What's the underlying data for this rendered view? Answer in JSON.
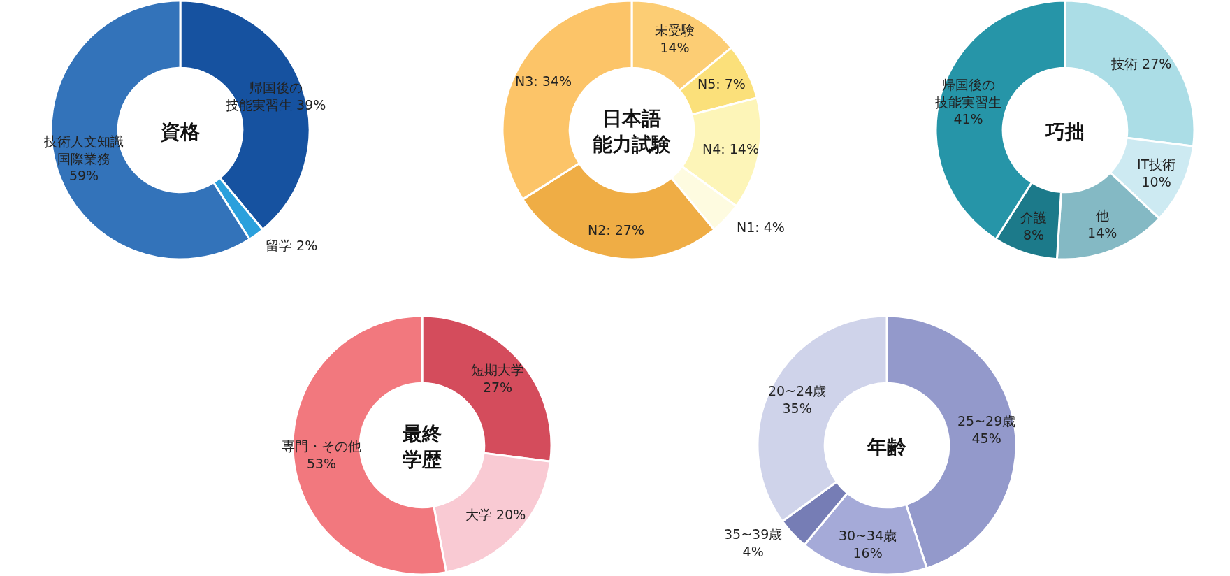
{
  "chart_data": [
    {
      "type": "donut",
      "title": "資格",
      "categories": [
        "帰国後の技能実習生",
        "留学",
        "技術人文知識国際業務"
      ],
      "values": [
        39,
        2,
        59
      ],
      "colors": [
        "#1652a0",
        "#2ba0dc",
        "#3373ba"
      ],
      "value_labels": [
        "39%",
        "2%",
        "59%"
      ]
    },
    {
      "type": "donut",
      "title": "日本語能力試験",
      "categories": [
        "未受験",
        "N5",
        "N4",
        "N1",
        "N2",
        "N3"
      ],
      "values": [
        14,
        7,
        14,
        4,
        27,
        34
      ],
      "colors": [
        "#fccd74",
        "#fbe07a",
        "#fdf5b8",
        "#fefbe0",
        "#efad45",
        "#fcc468"
      ],
      "value_labels": [
        "14%",
        "7%",
        "14%",
        "4%",
        "27%",
        "34%"
      ]
    },
    {
      "type": "donut",
      "title": "巧拙",
      "categories": [
        "技術",
        "IT技術",
        "他",
        "介護",
        "帰国後の技能実習生"
      ],
      "values": [
        27,
        10,
        14,
        8,
        41
      ],
      "colors": [
        "#abdde6",
        "#cdeaf2",
        "#84b9c4",
        "#1c7a8a",
        "#2695a8"
      ],
      "value_labels": [
        "27%",
        "10%",
        "14%",
        "8%",
        "41%"
      ]
    },
    {
      "type": "donut",
      "title": "最終学歴",
      "categories": [
        "短期大学",
        "大学",
        "専門・その他"
      ],
      "values": [
        27,
        20,
        53
      ],
      "colors": [
        "#d44c5c",
        "#f9cad3",
        "#f2787e"
      ],
      "value_labels": [
        "27%",
        "20%",
        "53%"
      ]
    },
    {
      "type": "donut",
      "title": "年齢",
      "categories": [
        "25~29歳",
        "30~34歳",
        "35~39歳",
        "20~24歳"
      ],
      "values": [
        45,
        16,
        4,
        35
      ],
      "colors": [
        "#9399cb",
        "#a5aad8",
        "#767db5",
        "#cfd3ea"
      ],
      "value_labels": [
        "45%",
        "16%",
        "4%",
        "35%"
      ]
    }
  ]
}
